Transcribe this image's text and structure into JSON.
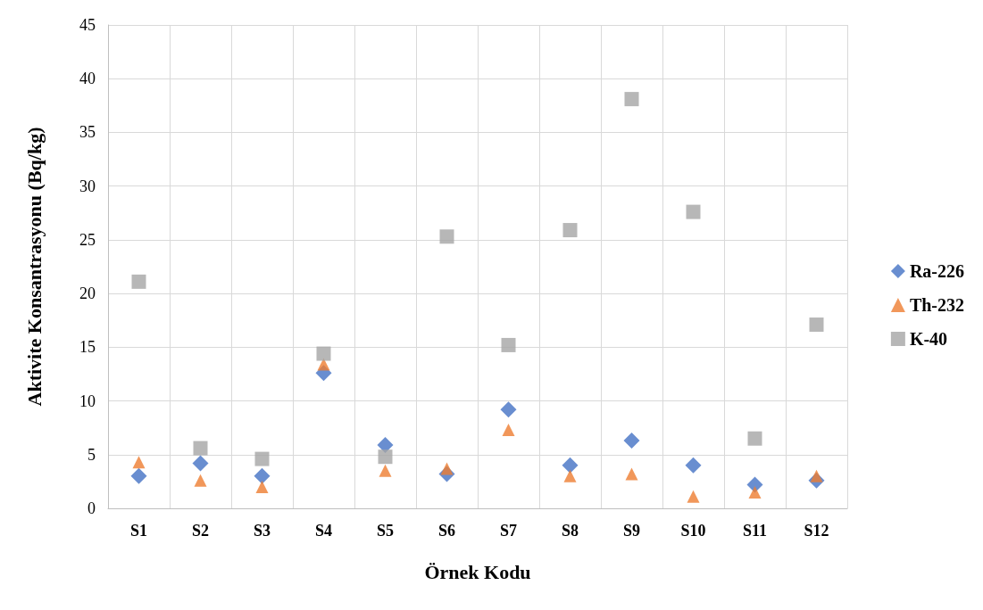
{
  "chart_data": {
    "type": "scatter",
    "xlabel": "Örnek Kodu",
    "ylabel": "Aktivite Konsantrasyonu (Bq/kg)",
    "categories": [
      "S1",
      "S2",
      "S3",
      "S4",
      "S5",
      "S6",
      "S7",
      "S8",
      "S9",
      "S10",
      "S11",
      "S12"
    ],
    "series": [
      {
        "name": "Ra-226",
        "color": "#4472c4",
        "marker": "diamond",
        "values": [
          3.0,
          4.2,
          3.0,
          12.6,
          5.9,
          3.2,
          9.2,
          4.0,
          6.3,
          4.0,
          2.2,
          2.6
        ]
      },
      {
        "name": "Th-232",
        "color": "#ed7d31",
        "marker": "triangle",
        "values": [
          4.3,
          2.6,
          2.0,
          13.4,
          3.5,
          3.7,
          7.3,
          3.0,
          3.2,
          1.1,
          1.5,
          3.0
        ]
      },
      {
        "name": "K-40",
        "color": "#a5a5a5",
        "marker": "square",
        "values": [
          21.1,
          5.6,
          4.6,
          14.4,
          4.8,
          25.3,
          15.2,
          25.9,
          38.1,
          27.6,
          6.5,
          17.1
        ]
      }
    ],
    "ylim": [
      0,
      45
    ],
    "yticks": [
      0,
      5,
      10,
      15,
      20,
      25,
      30,
      35,
      40,
      45
    ],
    "grid": true,
    "legend": "right"
  }
}
